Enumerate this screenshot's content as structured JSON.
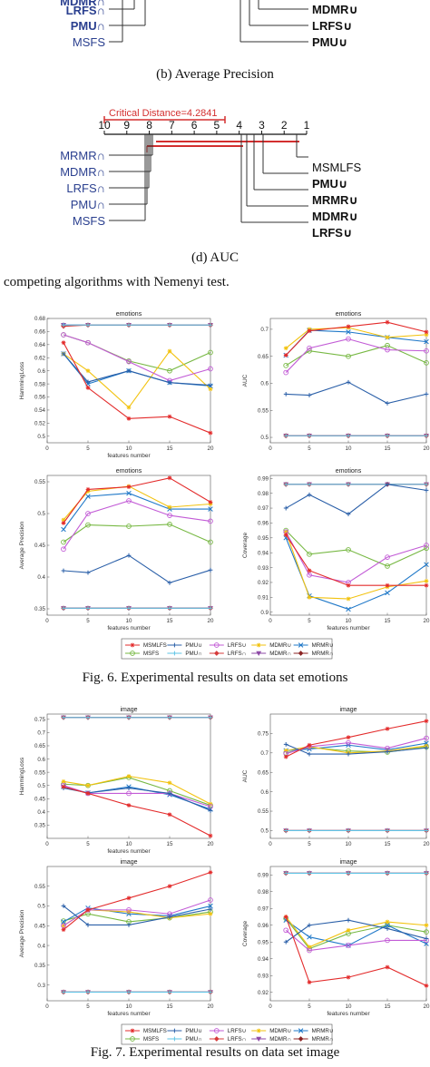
{
  "top_fragment": {
    "left_labels": [
      "MDMR∩",
      "LRFS∩",
      "PMU∩",
      "MSFS"
    ],
    "right_labels": [
      "MDMR∪",
      "LRFS∪",
      "PMU∪"
    ]
  },
  "caption_b": "(b) Average Precision",
  "diagram_d": {
    "critical_distance_label": "Critical Distance=4.2841",
    "axis_ticks": [
      "10",
      "9",
      "8",
      "7",
      "6",
      "5",
      "4",
      "3",
      "2",
      "1"
    ],
    "left_labels": [
      "MRMR∩",
      "MDMR∩",
      "LRFS∩",
      "PMU∩",
      "MSFS"
    ],
    "right_labels": [
      "MSMLFS",
      "PMU∪",
      "MRMR∪",
      "MDMR∪",
      "LRFS∪"
    ]
  },
  "caption_d": "(d) AUC",
  "nemenyi_caption": "competing algorithms with Nemenyi test.",
  "fig6_caption": "Fig. 6.  Experimental results on data set emotions",
  "fig7_caption": "Fig. 7.  Experimental results on data set image",
  "legend": {
    "names": [
      "MSMLFS",
      "PMU∪",
      "LRFS∪",
      "MDMR∪",
      "MRMR∪",
      "MSFS",
      "PMU∩",
      "LRFS∩",
      "MDMR∩",
      "MRMR∩"
    ],
    "colors": [
      "#e32b2b",
      "#2a5fa8",
      "#c25bd6",
      "#f2c20e",
      "#1f78c8",
      "#77b843",
      "#5ec4e6",
      "#d63a3a",
      "#8e4aa6",
      "#8b2323"
    ]
  },
  "chart_data": [
    {
      "type": "line",
      "title": "emotions",
      "xlabel": "features number",
      "ylabel": "HammingLoss",
      "x": [
        2,
        5,
        10,
        15,
        20
      ],
      "xlim": [
        0,
        20
      ],
      "ylim": [
        0.49,
        0.68
      ],
      "yticks": [
        0.5,
        0.52,
        0.54,
        0.56,
        0.58,
        0.6,
        0.62,
        0.64,
        0.66,
        0.68
      ],
      "xticks": [
        0,
        5,
        10,
        15,
        20
      ],
      "series": [
        {
          "name": "MSMLFS",
          "values": [
            0.643,
            0.574,
            0.527,
            0.53,
            0.505
          ]
        },
        {
          "name": "PMU∪",
          "values": [
            0.626,
            0.583,
            0.6,
            0.582,
            0.578
          ]
        },
        {
          "name": "LRFS∪",
          "values": [
            0.655,
            0.643,
            0.614,
            0.585,
            0.603
          ]
        },
        {
          "name": "MDMR∪",
          "values": [
            0.626,
            0.6,
            0.544,
            0.63,
            0.572
          ]
        },
        {
          "name": "MRMR∪",
          "values": [
            0.626,
            0.58,
            0.6,
            0.582,
            0.577
          ]
        },
        {
          "name": "MSFS",
          "values": [
            0.655,
            0.643,
            0.615,
            0.6,
            0.628
          ]
        },
        {
          "name": "PMU∩",
          "values": [
            0.67,
            0.67,
            0.67,
            0.67,
            0.67
          ]
        },
        {
          "name": "LRFS∩",
          "values": [
            0.668,
            0.67,
            0.67,
            0.67,
            0.67
          ]
        },
        {
          "name": "MDMR∩",
          "values": [
            0.67,
            0.67,
            0.67,
            0.67,
            0.67
          ]
        },
        {
          "name": "MRMR∩",
          "values": [
            0.67,
            0.67,
            0.67,
            0.67,
            0.67
          ]
        }
      ]
    },
    {
      "type": "line",
      "title": "emotions",
      "xlabel": "",
      "ylabel": "AUC",
      "x": [
        2,
        5,
        10,
        15,
        20
      ],
      "xlim": [
        0,
        20
      ],
      "ylim": [
        0.49,
        0.72
      ],
      "yticks": [
        0.5,
        0.55,
        0.6,
        0.65,
        0.7
      ],
      "xticks": [
        0,
        5,
        10,
        15,
        20
      ],
      "series": [
        {
          "name": "MSMLFS",
          "values": [
            0.652,
            0.697,
            0.705,
            0.713,
            0.695
          ]
        },
        {
          "name": "PMU∪",
          "values": [
            0.58,
            0.578,
            0.602,
            0.563,
            0.58
          ]
        },
        {
          "name": "LRFS∪",
          "values": [
            0.62,
            0.665,
            0.682,
            0.662,
            0.66
          ]
        },
        {
          "name": "MDMR∪",
          "values": [
            0.665,
            0.7,
            0.703,
            0.685,
            0.69
          ]
        },
        {
          "name": "MRMR∪",
          "values": [
            0.652,
            0.698,
            0.695,
            0.685,
            0.677
          ]
        },
        {
          "name": "MSFS",
          "values": [
            0.633,
            0.66,
            0.65,
            0.67,
            0.638
          ]
        },
        {
          "name": "PMU∩",
          "values": [
            0.503,
            0.503,
            0.503,
            0.503,
            0.503
          ]
        },
        {
          "name": "LRFS∩",
          "values": [
            0.503,
            0.503,
            0.503,
            0.503,
            0.503
          ]
        },
        {
          "name": "MDMR∩",
          "values": [
            0.503,
            0.503,
            0.503,
            0.503,
            0.503
          ]
        },
        {
          "name": "MRMR∩",
          "values": [
            0.503,
            0.503,
            0.503,
            0.503,
            0.503
          ]
        }
      ]
    },
    {
      "type": "line",
      "title": "emotions",
      "xlabel": "features number",
      "ylabel": "Average Precision",
      "x": [
        2,
        5,
        10,
        15,
        20
      ],
      "xlim": [
        0,
        20
      ],
      "ylim": [
        0.34,
        0.56
      ],
      "yticks": [
        0.35,
        0.4,
        0.45,
        0.5,
        0.55
      ],
      "xticks": [
        0,
        5,
        10,
        15,
        20
      ],
      "series": [
        {
          "name": "MSMLFS",
          "values": [
            0.485,
            0.538,
            0.542,
            0.556,
            0.518
          ]
        },
        {
          "name": "PMU∪",
          "values": [
            0.41,
            0.407,
            0.434,
            0.391,
            0.411
          ]
        },
        {
          "name": "LRFS∪",
          "values": [
            0.444,
            0.5,
            0.52,
            0.497,
            0.488
          ]
        },
        {
          "name": "MDMR∪",
          "values": [
            0.49,
            0.535,
            0.543,
            0.51,
            0.515
          ]
        },
        {
          "name": "MRMR∪",
          "values": [
            0.475,
            0.527,
            0.532,
            0.507,
            0.507
          ]
        },
        {
          "name": "MSFS",
          "values": [
            0.455,
            0.482,
            0.48,
            0.483,
            0.455
          ]
        },
        {
          "name": "PMU∩",
          "values": [
            0.351,
            0.351,
            0.351,
            0.351,
            0.351
          ]
        },
        {
          "name": "LRFS∩",
          "values": [
            0.351,
            0.351,
            0.351,
            0.351,
            0.351
          ]
        },
        {
          "name": "MDMR∩",
          "values": [
            0.351,
            0.351,
            0.351,
            0.351,
            0.351
          ]
        },
        {
          "name": "MRMR∩",
          "values": [
            0.351,
            0.351,
            0.351,
            0.351,
            0.351
          ]
        }
      ]
    },
    {
      "type": "line",
      "title": "emotions",
      "xlabel": "features number",
      "ylabel": "Coverage",
      "x": [
        2,
        5,
        10,
        15,
        20
      ],
      "xlim": [
        0,
        20
      ],
      "ylim": [
        0.898,
        0.992
      ],
      "yticks": [
        0.9,
        0.91,
        0.92,
        0.93,
        0.94,
        0.95,
        0.96,
        0.97,
        0.98,
        0.99
      ],
      "xticks": [
        0,
        5,
        10,
        15,
        20
      ],
      "series": [
        {
          "name": "MSMLFS",
          "values": [
            0.952,
            0.928,
            0.918,
            0.918,
            0.918
          ]
        },
        {
          "name": "PMU∪",
          "values": [
            0.97,
            0.979,
            0.966,
            0.986,
            0.982
          ]
        },
        {
          "name": "LRFS∪",
          "values": [
            0.954,
            0.925,
            0.92,
            0.937,
            0.945
          ]
        },
        {
          "name": "MDMR∪",
          "values": [
            0.954,
            0.91,
            0.909,
            0.917,
            0.921
          ]
        },
        {
          "name": "MRMR∪",
          "values": [
            0.95,
            0.911,
            0.902,
            0.913,
            0.932
          ]
        },
        {
          "name": "MSFS",
          "values": [
            0.955,
            0.939,
            0.942,
            0.931,
            0.943
          ]
        },
        {
          "name": "PMU∩",
          "values": [
            0.986,
            0.986,
            0.986,
            0.986,
            0.986
          ]
        },
        {
          "name": "LRFS∩",
          "values": [
            0.986,
            0.986,
            0.986,
            0.986,
            0.986
          ]
        },
        {
          "name": "MDMR∩",
          "values": [
            0.986,
            0.986,
            0.986,
            0.986,
            0.986
          ]
        },
        {
          "name": "MRMR∩",
          "values": [
            0.986,
            0.986,
            0.986,
            0.986,
            0.986
          ]
        }
      ]
    },
    {
      "type": "line",
      "title": "image",
      "xlabel": "features number",
      "ylabel": "HammingLoss",
      "x": [
        2,
        5,
        10,
        15,
        20
      ],
      "xlim": [
        0,
        20
      ],
      "ylim": [
        0.3,
        0.77
      ],
      "yticks": [
        0.35,
        0.4,
        0.45,
        0.5,
        0.55,
        0.6,
        0.65,
        0.7,
        0.75
      ],
      "xticks": [
        0,
        5,
        10,
        15,
        20
      ],
      "series": [
        {
          "name": "MSMLFS",
          "values": [
            0.495,
            0.47,
            0.425,
            0.39,
            0.31
          ]
        },
        {
          "name": "PMU∪",
          "values": [
            0.49,
            0.472,
            0.49,
            0.47,
            0.405
          ]
        },
        {
          "name": "LRFS∪",
          "values": [
            0.5,
            0.47,
            0.47,
            0.47,
            0.42
          ]
        },
        {
          "name": "MDMR∪",
          "values": [
            0.515,
            0.5,
            0.535,
            0.51,
            0.43
          ]
        },
        {
          "name": "MRMR∪",
          "values": [
            0.495,
            0.472,
            0.495,
            0.465,
            0.41
          ]
        },
        {
          "name": "MSFS",
          "values": [
            0.505,
            0.5,
            0.53,
            0.48,
            0.425
          ]
        },
        {
          "name": "PMU∩",
          "values": [
            0.757,
            0.757,
            0.757,
            0.757,
            0.757
          ]
        },
        {
          "name": "LRFS∩",
          "values": [
            0.757,
            0.757,
            0.757,
            0.757,
            0.757
          ]
        },
        {
          "name": "MDMR∩",
          "values": [
            0.757,
            0.757,
            0.757,
            0.757,
            0.757
          ]
        },
        {
          "name": "MRMR∩",
          "values": [
            0.757,
            0.757,
            0.757,
            0.757,
            0.757
          ]
        }
      ]
    },
    {
      "type": "line",
      "title": "image",
      "xlabel": "",
      "ylabel": "AUC",
      "x": [
        2,
        5,
        10,
        15,
        20
      ],
      "xlim": [
        0,
        20
      ],
      "ylim": [
        0.48,
        0.8
      ],
      "yticks": [
        0.5,
        0.55,
        0.6,
        0.65,
        0.7,
        0.75
      ],
      "xticks": [
        0,
        5,
        10,
        15,
        20
      ],
      "series": [
        {
          "name": "MSMLFS",
          "values": [
            0.69,
            0.72,
            0.74,
            0.762,
            0.782
          ]
        },
        {
          "name": "PMU∪",
          "values": [
            0.722,
            0.697,
            0.697,
            0.703,
            0.713
          ]
        },
        {
          "name": "LRFS∪",
          "values": [
            0.698,
            0.716,
            0.726,
            0.712,
            0.738
          ]
        },
        {
          "name": "MDMR∪",
          "values": [
            0.706,
            0.716,
            0.7,
            0.705,
            0.718
          ]
        },
        {
          "name": "MRMR∪",
          "values": [
            0.706,
            0.71,
            0.72,
            0.708,
            0.725
          ]
        },
        {
          "name": "MSFS",
          "values": [
            0.7,
            0.714,
            0.705,
            0.702,
            0.715
          ]
        },
        {
          "name": "PMU∩",
          "values": [
            0.5,
            0.5,
            0.5,
            0.5,
            0.5
          ]
        },
        {
          "name": "LRFS∩",
          "values": [
            0.5,
            0.5,
            0.5,
            0.5,
            0.5
          ]
        },
        {
          "name": "MDMR∩",
          "values": [
            0.5,
            0.5,
            0.5,
            0.5,
            0.5
          ]
        },
        {
          "name": "MRMR∩",
          "values": [
            0.5,
            0.5,
            0.5,
            0.5,
            0.5
          ]
        }
      ]
    },
    {
      "type": "line",
      "title": "image",
      "xlabel": "features number",
      "ylabel": "Average Precision",
      "x": [
        2,
        5,
        10,
        15,
        20
      ],
      "xlim": [
        0,
        20
      ],
      "ylim": [
        0.26,
        0.6
      ],
      "yticks": [
        0.3,
        0.35,
        0.4,
        0.45,
        0.5,
        0.55
      ],
      "xticks": [
        0,
        5,
        10,
        15,
        20
      ],
      "series": [
        {
          "name": "MSMLFS",
          "values": [
            0.44,
            0.49,
            0.52,
            0.55,
            0.585
          ]
        },
        {
          "name": "PMU∪",
          "values": [
            0.5,
            0.452,
            0.452,
            0.472,
            0.492
          ]
        },
        {
          "name": "LRFS∪",
          "values": [
            0.45,
            0.49,
            0.49,
            0.48,
            0.515
          ]
        },
        {
          "name": "MDMR∪",
          "values": [
            0.45,
            0.49,
            0.485,
            0.47,
            0.48
          ]
        },
        {
          "name": "MRMR∪",
          "values": [
            0.46,
            0.495,
            0.48,
            0.475,
            0.5
          ]
        },
        {
          "name": "MSFS",
          "values": [
            0.462,
            0.48,
            0.46,
            0.47,
            0.485
          ]
        },
        {
          "name": "PMU∩",
          "values": [
            0.282,
            0.282,
            0.282,
            0.282,
            0.282
          ]
        },
        {
          "name": "LRFS∩",
          "values": [
            0.282,
            0.282,
            0.282,
            0.282,
            0.282
          ]
        },
        {
          "name": "MDMR∩",
          "values": [
            0.282,
            0.282,
            0.282,
            0.282,
            0.282
          ]
        },
        {
          "name": "MRMR∩",
          "values": [
            0.282,
            0.282,
            0.282,
            0.282,
            0.282
          ]
        }
      ]
    },
    {
      "type": "line",
      "title": "image",
      "xlabel": "features number",
      "ylabel": "Coverage",
      "x": [
        2,
        5,
        10,
        15,
        20
      ],
      "xlim": [
        0,
        20
      ],
      "ylim": [
        0.915,
        0.995
      ],
      "yticks": [
        0.92,
        0.93,
        0.94,
        0.95,
        0.96,
        0.97,
        0.98,
        0.99
      ],
      "xticks": [
        0,
        5,
        10,
        15,
        20
      ],
      "series": [
        {
          "name": "MSMLFS",
          "values": [
            0.965,
            0.926,
            0.929,
            0.935,
            0.924
          ]
        },
        {
          "name": "PMU∪",
          "values": [
            0.95,
            0.96,
            0.963,
            0.958,
            0.952
          ]
        },
        {
          "name": "LRFS∪",
          "values": [
            0.957,
            0.945,
            0.948,
            0.951,
            0.951
          ]
        },
        {
          "name": "MDMR∪",
          "values": [
            0.965,
            0.947,
            0.957,
            0.962,
            0.96
          ]
        },
        {
          "name": "MRMR∪",
          "values": [
            0.963,
            0.953,
            0.948,
            0.96,
            0.949
          ]
        },
        {
          "name": "MSFS",
          "values": [
            0.964,
            0.946,
            0.955,
            0.96,
            0.956
          ]
        },
        {
          "name": "PMU∩",
          "values": [
            0.991,
            0.991,
            0.991,
            0.991,
            0.991
          ]
        },
        {
          "name": "LRFS∩",
          "values": [
            0.991,
            0.991,
            0.991,
            0.991,
            0.991
          ]
        },
        {
          "name": "MDMR∩",
          "values": [
            0.991,
            0.991,
            0.991,
            0.991,
            0.991
          ]
        },
        {
          "name": "MRMR∩",
          "values": [
            0.991,
            0.991,
            0.991,
            0.991,
            0.991
          ]
        }
      ]
    }
  ]
}
